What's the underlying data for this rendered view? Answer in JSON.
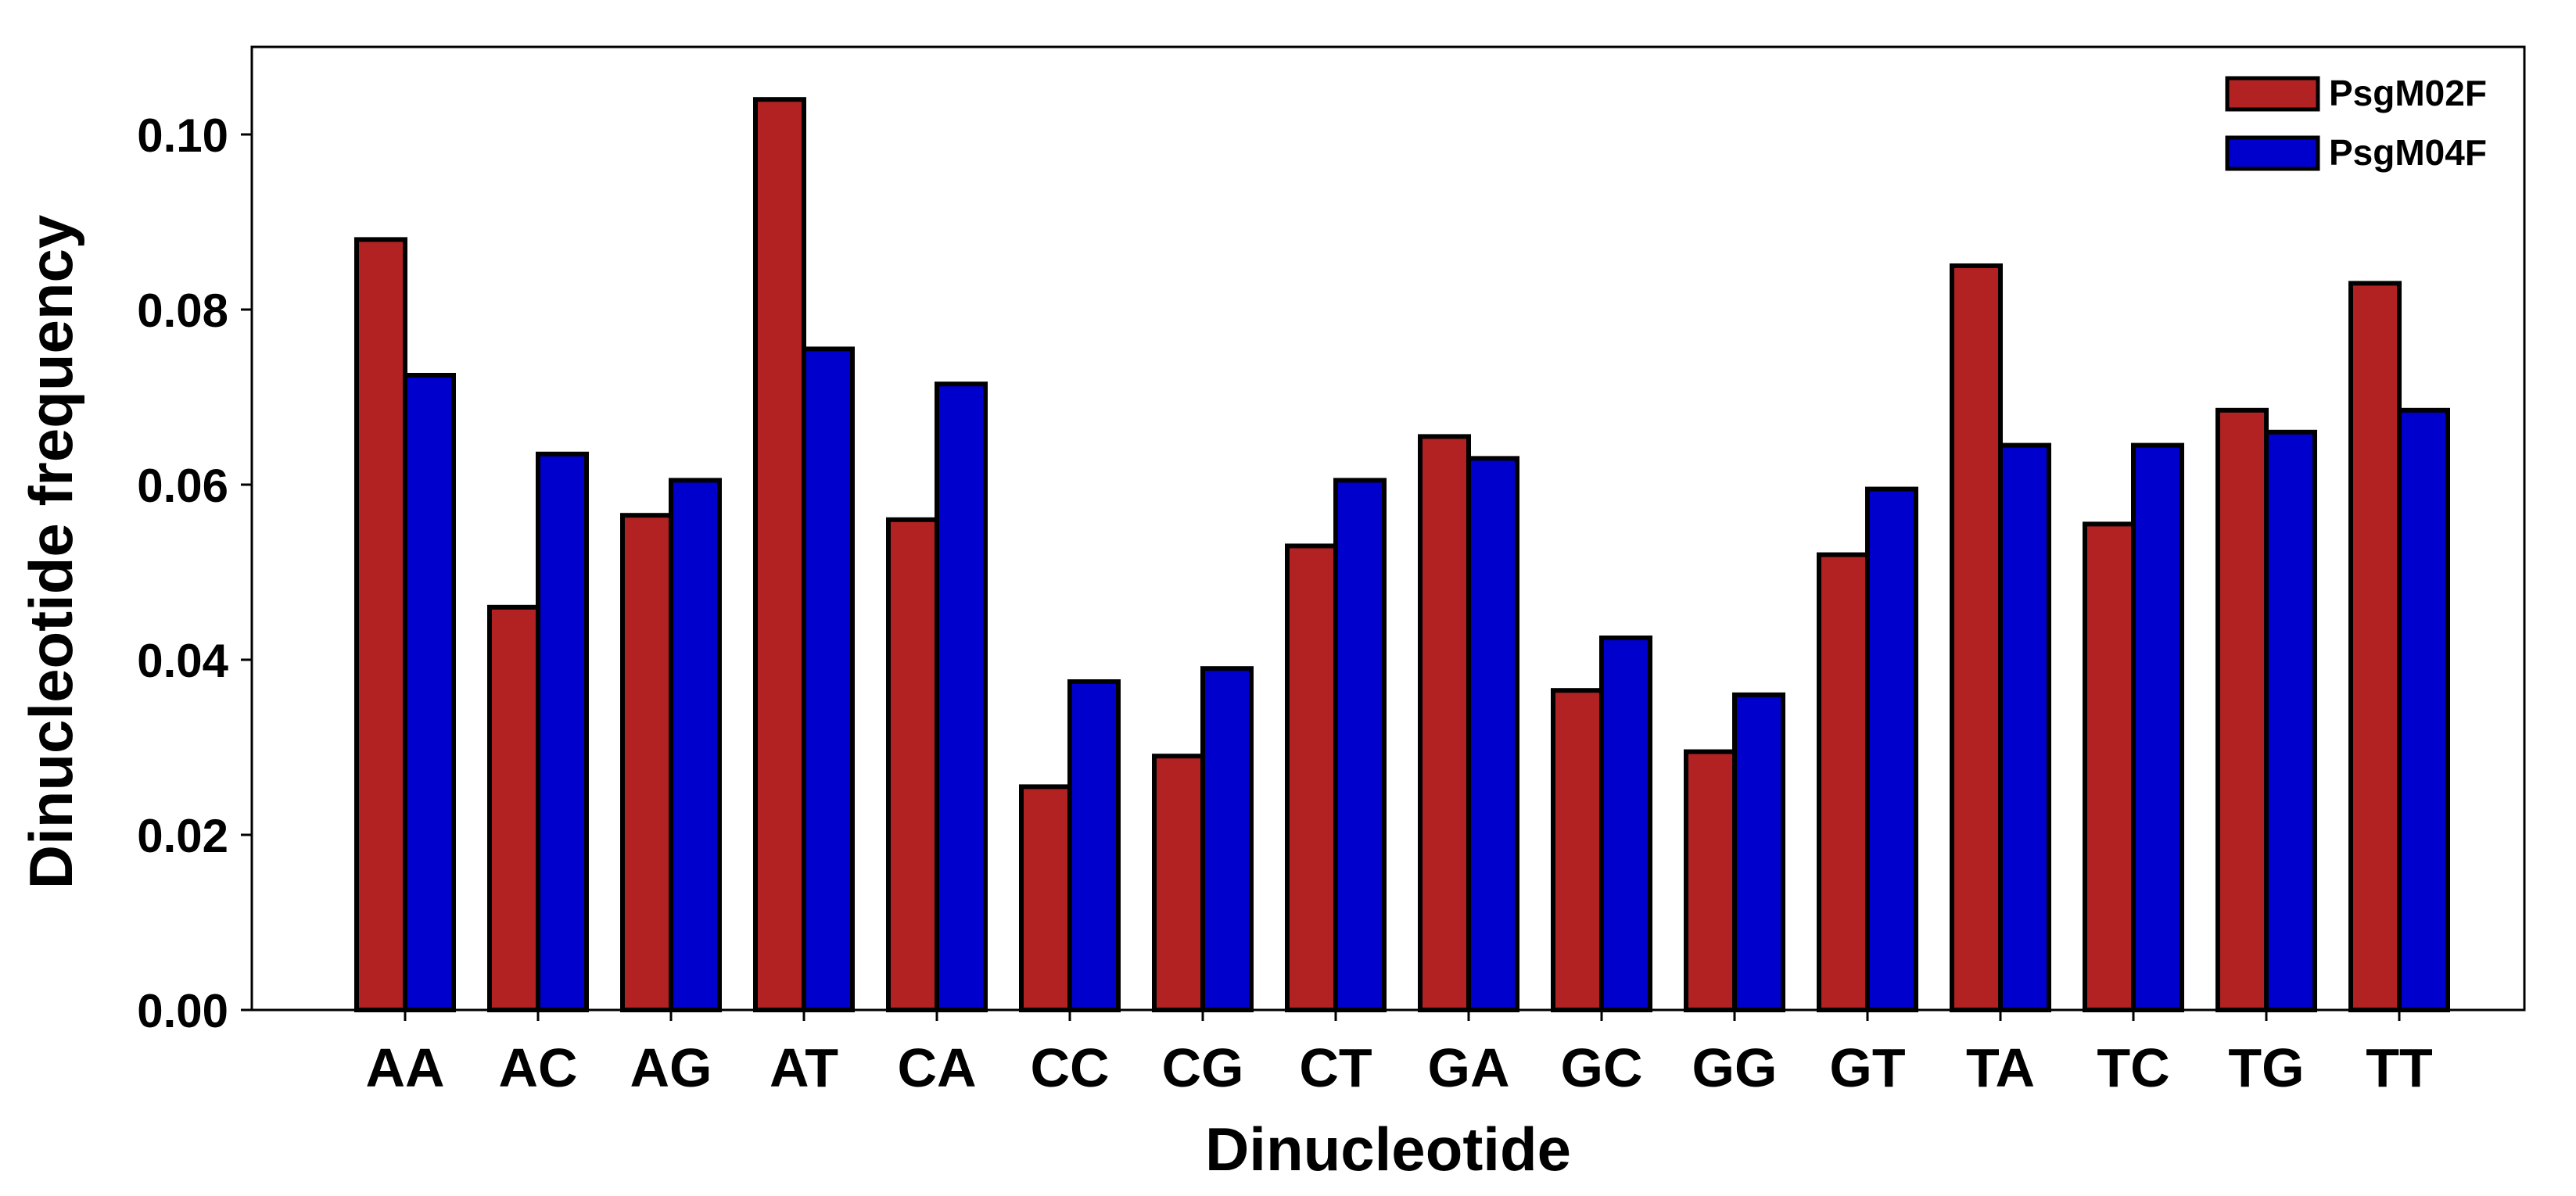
{
  "chart_data": {
    "type": "bar",
    "title": "",
    "xlabel": "Dinucleotide",
    "ylabel": "Dinucleotide frequency",
    "ylim": [
      0,
      0.11
    ],
    "yticks": [
      0.0,
      0.02,
      0.04,
      0.06,
      0.08,
      0.1
    ],
    "ytick_labels": [
      "0.00",
      "0.02",
      "0.04",
      "0.06",
      "0.08",
      "0.10"
    ],
    "grid": false,
    "legend_position": "top-right",
    "categories": [
      "AA",
      "AC",
      "AG",
      "AT",
      "CA",
      "CC",
      "CG",
      "CT",
      "GA",
      "GC",
      "GG",
      "GT",
      "TA",
      "TC",
      "TG",
      "TT"
    ],
    "series": [
      {
        "name": "PsgM02F",
        "color": "#b22222",
        "values": [
          0.088,
          0.046,
          0.0565,
          0.104,
          0.056,
          0.0255,
          0.029,
          0.053,
          0.0655,
          0.0365,
          0.0295,
          0.052,
          0.085,
          0.0555,
          0.0685,
          0.083
        ]
      },
      {
        "name": "PsgM04F",
        "color": "#0000cd",
        "values": [
          0.0725,
          0.0635,
          0.0605,
          0.0755,
          0.0715,
          0.0375,
          0.039,
          0.0605,
          0.063,
          0.0425,
          0.036,
          0.0595,
          0.0645,
          0.0645,
          0.066,
          0.0685
        ]
      }
    ]
  }
}
